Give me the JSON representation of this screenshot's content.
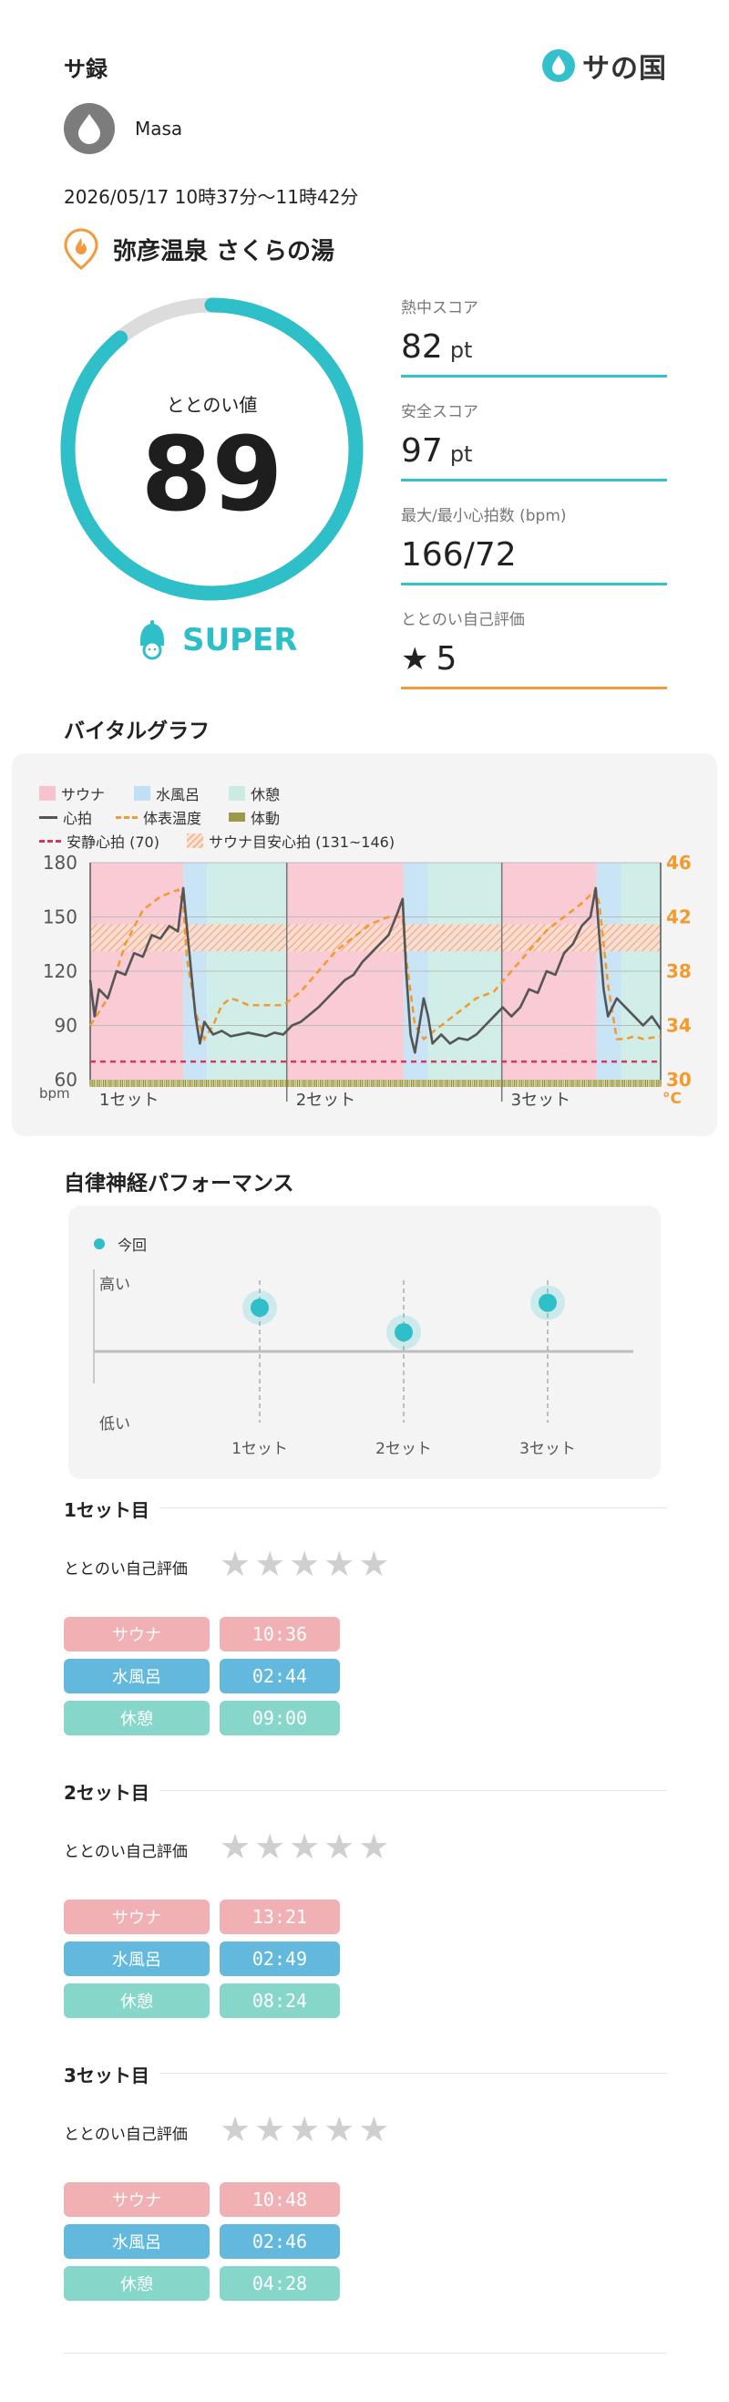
{
  "header": {
    "app_title": "サ録",
    "brand_text": "サの国"
  },
  "user": {
    "name": "Masa"
  },
  "session": {
    "datetime": "2026/05/17 10時37分〜11時42分",
    "facility": "弥彦温泉 さくらの湯"
  },
  "score": {
    "label": "ととのい値",
    "value": "89",
    "fraction": 0.89,
    "rank": "SUPER"
  },
  "stats": [
    {
      "label": "熱中スコア",
      "value": "82",
      "unit": "pt"
    },
    {
      "label": "安全スコア",
      "value": "97",
      "unit": "pt"
    },
    {
      "label": "最大/最小心拍数 (bpm)",
      "value": "166/72",
      "unit": ""
    },
    {
      "label": "ととのい自己評価",
      "value": "5",
      "unit": "",
      "icon": "star-icon"
    }
  ],
  "vital": {
    "title": "バイタルグラフ",
    "legend": {
      "sauna": "サウナ",
      "water": "水風呂",
      "rest": "休憩",
      "heart": "心拍",
      "temp": "体表温度",
      "motion": "体動",
      "resting": "安静心拍 (70)",
      "target": "サウナ目安心拍 (131~146)"
    },
    "colors": {
      "sauna": "#f8c3cf",
      "water": "#bfe0f5",
      "rest": "#c9ebe4",
      "heart": "#555555",
      "temp": "#f39a2c",
      "resting": "#d6365c",
      "motion": "#8f8f3a"
    },
    "y_left_ticks": [
      "180",
      "150",
      "120",
      "90",
      "60"
    ],
    "y_right_ticks": [
      "46",
      "42",
      "38",
      "34",
      "30"
    ],
    "y_left_unit": "bpm",
    "y_right_unit": "°C",
    "set_labels": [
      "1セット",
      "2セット",
      "3セット"
    ]
  },
  "chart_data": {
    "type": "line",
    "xlabel": "",
    "ylabel": "bpm",
    "ylim": [
      60,
      180
    ],
    "y2lim": [
      30,
      46
    ],
    "resting_hr": 70,
    "target_hr": [
      131,
      146
    ],
    "phases": [
      {
        "phase": "sauna",
        "start": 0,
        "end": 10.6
      },
      {
        "phase": "water",
        "start": 10.6,
        "end": 13.3
      },
      {
        "phase": "rest",
        "start": 13.3,
        "end": 22.4
      },
      {
        "phase": "sauna",
        "start": 22.4,
        "end": 35.7
      },
      {
        "phase": "water",
        "start": 35.7,
        "end": 38.5
      },
      {
        "phase": "rest",
        "start": 38.5,
        "end": 46.9
      },
      {
        "phase": "sauna",
        "start": 46.9,
        "end": 57.7
      },
      {
        "phase": "water",
        "start": 57.7,
        "end": 60.5
      },
      {
        "phase": "rest",
        "start": 60.5,
        "end": 65.0
      }
    ],
    "series": [
      {
        "name": "心拍",
        "x": [
          0,
          0.5,
          1,
          2,
          3,
          4,
          5,
          6,
          7,
          8,
          9,
          10,
          10.6,
          11,
          11.5,
          12,
          12.5,
          13,
          14,
          15,
          16,
          17,
          18,
          19,
          20,
          21,
          22,
          23,
          24,
          25,
          26,
          27,
          28,
          29,
          30,
          31,
          32,
          33,
          34,
          35,
          35.6,
          36,
          36.5,
          37,
          37.5,
          38,
          38.5,
          39,
          40,
          41,
          42,
          43,
          44,
          45,
          46,
          47,
          48,
          49,
          50,
          51,
          52,
          53,
          54,
          55,
          56,
          57,
          57.6,
          58,
          58.5,
          59,
          60,
          61,
          62,
          63,
          64,
          65
        ],
        "y": [
          115,
          95,
          110,
          105,
          120,
          118,
          130,
          128,
          140,
          138,
          145,
          142,
          166,
          145,
          120,
          95,
          80,
          92,
          85,
          87,
          84,
          85,
          86,
          85,
          84,
          86,
          85,
          90,
          92,
          96,
          100,
          105,
          110,
          115,
          118,
          125,
          130,
          135,
          140,
          152,
          160,
          120,
          85,
          75,
          90,
          105,
          95,
          80,
          85,
          80,
          83,
          82,
          85,
          90,
          95,
          100,
          95,
          100,
          110,
          108,
          120,
          118,
          130,
          135,
          145,
          150,
          166,
          140,
          110,
          95,
          105,
          100,
          95,
          90,
          95,
          88
        ]
      },
      {
        "name": "体表温度",
        "x": [
          0,
          2,
          4,
          6,
          8,
          10,
          10.6,
          11,
          12,
          13,
          14,
          15,
          16,
          17,
          18,
          20,
          22,
          24,
          26,
          28,
          30,
          32,
          34,
          35.6,
          36,
          37,
          38,
          39,
          40,
          41,
          42,
          44,
          46,
          48,
          50,
          52,
          54,
          56,
          57.6,
          58,
          59,
          60,
          61,
          62,
          63,
          65
        ],
        "y": [
          34,
          36,
          40,
          42.5,
          43.5,
          44,
          43,
          39,
          35,
          33,
          34,
          35.5,
          36,
          35.8,
          35.5,
          35.5,
          35.5,
          36.5,
          38,
          39.5,
          40.5,
          41.5,
          42,
          42,
          39,
          34,
          33,
          33.5,
          34,
          34.5,
          35,
          36,
          36.5,
          38,
          39.5,
          41,
          42,
          43,
          44,
          43,
          37,
          33,
          33,
          33.2,
          33,
          33.2
        ]
      }
    ]
  },
  "ans": {
    "title": "自律神経パフォーマンス",
    "legend": "今回",
    "high": "高い",
    "low": "低い",
    "set_labels": [
      "1セット",
      "2セット",
      "3セット"
    ],
    "levels": [
      0.6,
      0.45,
      0.63
    ]
  },
  "sets": [
    {
      "title": "1セット目",
      "rating_label": "ととのい自己評価",
      "rating": 0,
      "sauna": "サウナ",
      "water": "水風呂",
      "rest": "休憩",
      "sauna_time": "10:36",
      "water_time": "02:44",
      "rest_time": "09:00"
    },
    {
      "title": "2セット目",
      "rating_label": "ととのい自己評価",
      "rating": 0,
      "sauna": "サウナ",
      "water": "水風呂",
      "rest": "休憩",
      "sauna_time": "13:21",
      "water_time": "02:49",
      "rest_time": "08:24"
    },
    {
      "title": "3セット目",
      "rating_label": "ととのい自己評価",
      "rating": 0,
      "sauna": "サウナ",
      "water": "水風呂",
      "rest": "休憩",
      "sauna_time": "10:48",
      "water_time": "02:46",
      "rest_time": "04:28"
    }
  ]
}
